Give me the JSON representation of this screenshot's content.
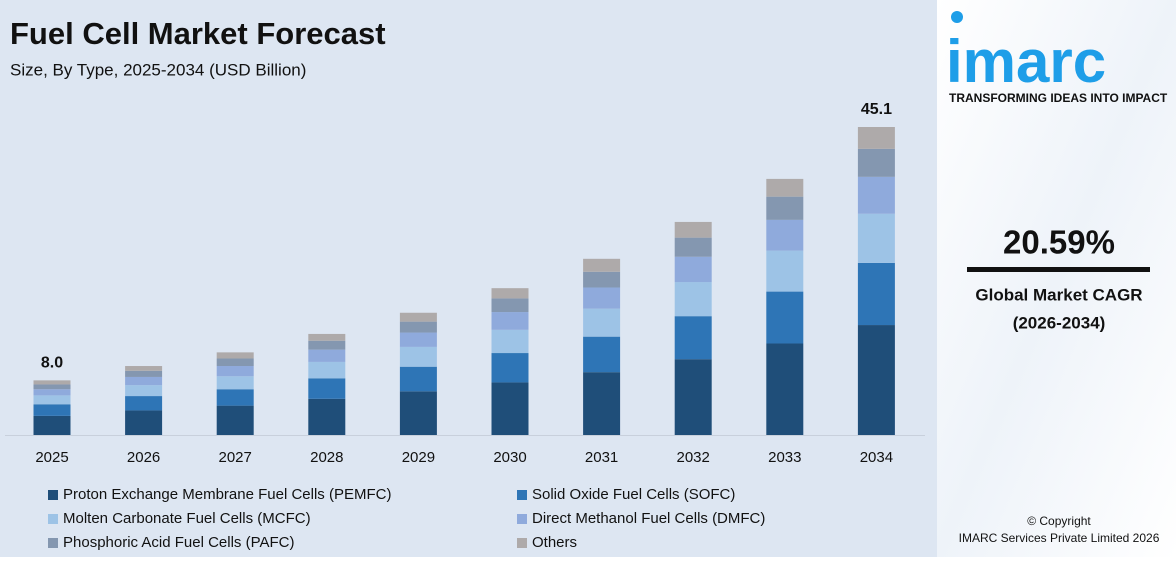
{
  "chart_data": {
    "type": "stacked-bar",
    "title": "Fuel Cell Market Forecast",
    "subtitle": "Size, By Type, 2025-2034 (USD Billion)",
    "categories": [
      "2025",
      "2026",
      "2027",
      "2028",
      "2029",
      "2030",
      "2031",
      "2032",
      "2033",
      "2034"
    ],
    "series": [
      {
        "name": "Proton Exchange Membrane Fuel Cells (PEMFC)",
        "color": "#1f4e79",
        "values": [
          2.8,
          3.6,
          4.3,
          5.3,
          6.4,
          7.7,
          9.2,
          11.1,
          13.4,
          16.1
        ]
      },
      {
        "name": "Solid Oxide Fuel Cells (SOFC)",
        "color": "#2e75b6",
        "values": [
          1.7,
          2.1,
          2.4,
          3.0,
          3.6,
          4.3,
          5.2,
          6.3,
          7.6,
          9.1
        ]
      },
      {
        "name": "Molten Carbonate Fuel Cells (MCFC)",
        "color": "#9dc3e6",
        "values": [
          1.3,
          1.6,
          1.9,
          2.4,
          2.9,
          3.4,
          4.1,
          5.0,
          6.0,
          7.2
        ]
      },
      {
        "name": "Direct Methanol Fuel Cells (DMFC)",
        "color": "#8faadc",
        "values": [
          0.9,
          1.2,
          1.5,
          1.8,
          2.1,
          2.6,
          3.1,
          3.7,
          4.5,
          5.4
        ]
      },
      {
        "name": "Phosphoric Acid Fuel Cells (PAFC)",
        "color": "#8497b0",
        "values": [
          0.7,
          0.9,
          1.1,
          1.3,
          1.6,
          2.0,
          2.3,
          2.8,
          3.4,
          4.1
        ]
      },
      {
        "name": "Others",
        "color": "#aeaaaa",
        "values": [
          0.6,
          0.7,
          0.9,
          1.0,
          1.3,
          1.5,
          1.9,
          2.3,
          2.6,
          3.2
        ]
      }
    ],
    "totals": [
      {
        "value": 8,
        "label": "8.0"
      },
      null,
      null,
      null,
      null,
      null,
      null,
      null,
      null,
      45.1
    ]
  },
  "sidebar": {
    "logo": "imarc",
    "tagline": "TRANSFORMING IDEAS INTO IMPACT",
    "cagr": "20.59%",
    "cagr_label": "Global Market CAGR",
    "cagr_period": "(2026-2034)",
    "copyright": "© Copyright",
    "company": "IMARC Services Private Limited 2026"
  }
}
